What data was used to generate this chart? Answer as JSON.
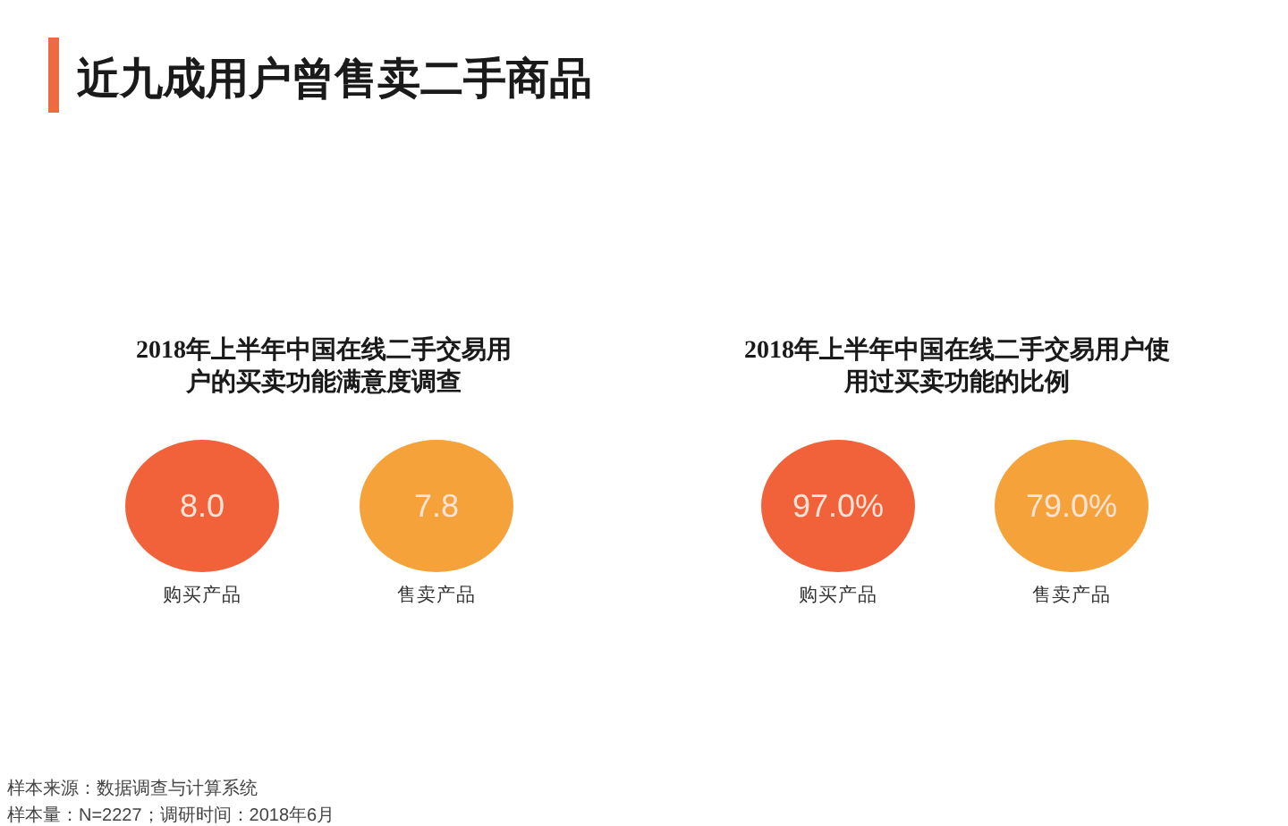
{
  "chart_data": [
    {
      "type": "other",
      "title": "2018年上半年中国在线二手交易用户的买卖功能满意度调查",
      "categories": [
        "购买产品",
        "售卖产品"
      ],
      "values": [
        8.0,
        7.8
      ],
      "value_labels": [
        "8.0",
        "7.8"
      ],
      "colors": [
        "#f2623a",
        "#f6a23a"
      ],
      "annotations": [
        "近九成用户曾售卖二手商品",
        "样本来源：数据调查与计算系统",
        "样本量：N=2227；调研时间：2018年6月"
      ]
    },
    {
      "type": "other",
      "title": "2018年上半年中国在线二手交易用户使用过买卖功能的比例",
      "categories": [
        "购买产品",
        "售卖产品"
      ],
      "values": [
        97.0,
        79.0
      ],
      "value_labels": [
        "97.0%",
        "79.0%"
      ],
      "colors": [
        "#f2623a",
        "#f6a23a"
      ]
    }
  ]
}
